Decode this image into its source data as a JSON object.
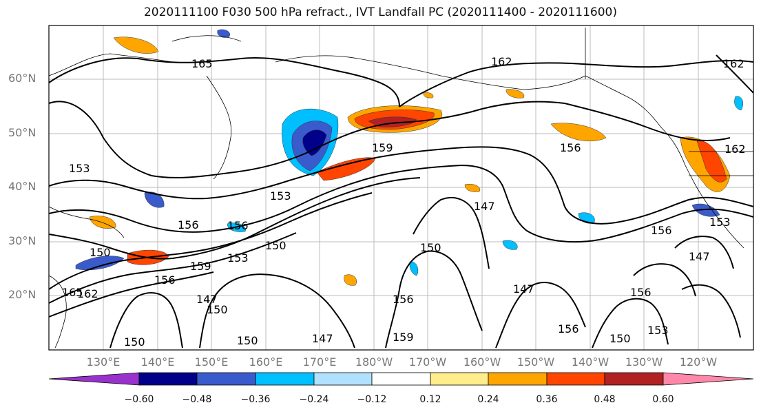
{
  "title": "2020111100 F030 500 hPa refract., IVT Landfall PC (2020111400 - 2020111600)",
  "lat_labels": [
    "60°N",
    "50°N",
    "40°N",
    "30°N",
    "20°N"
  ],
  "lon_labels": [
    "130°E",
    "140°E",
    "150°E",
    "160°E",
    "170°E",
    "180°W",
    "170°W",
    "160°W",
    "150°W",
    "140°W",
    "130°W",
    "120°W"
  ],
  "colorbar": {
    "ticks": [
      "−0.60",
      "−0.48",
      "−0.36",
      "−0.24",
      "−0.12",
      "0.12",
      "0.24",
      "0.36",
      "0.48",
      "0.60"
    ],
    "colors": [
      "#9932cc",
      "#00008b",
      "#3a5bcc",
      "#00bfff",
      "#b0e2ff",
      "#ffffff",
      "#ffec8b",
      "#ffa500",
      "#ff4500",
      "#b22222",
      "#ff88aa"
    ]
  },
  "contour_labels": [
    "165",
    "162",
    "156",
    "159",
    "153",
    "156",
    "156",
    "150",
    "159",
    "153",
    "150",
    "165",
    "162",
    "156",
    "147",
    "150",
    "150",
    "147",
    "150",
    "159",
    "156",
    "150",
    "147",
    "147",
    "150",
    "156",
    "156",
    "153",
    "156",
    "153",
    "162",
    "162",
    "147",
    "153"
  ],
  "anomaly_colors": {
    "negative_strong": "#00008b",
    "negative": "#3a5bcc",
    "negative_light": "#00bfff",
    "positive": "#ffa500",
    "positive_strong": "#ff4500",
    "positive_max": "#b22222"
  }
}
